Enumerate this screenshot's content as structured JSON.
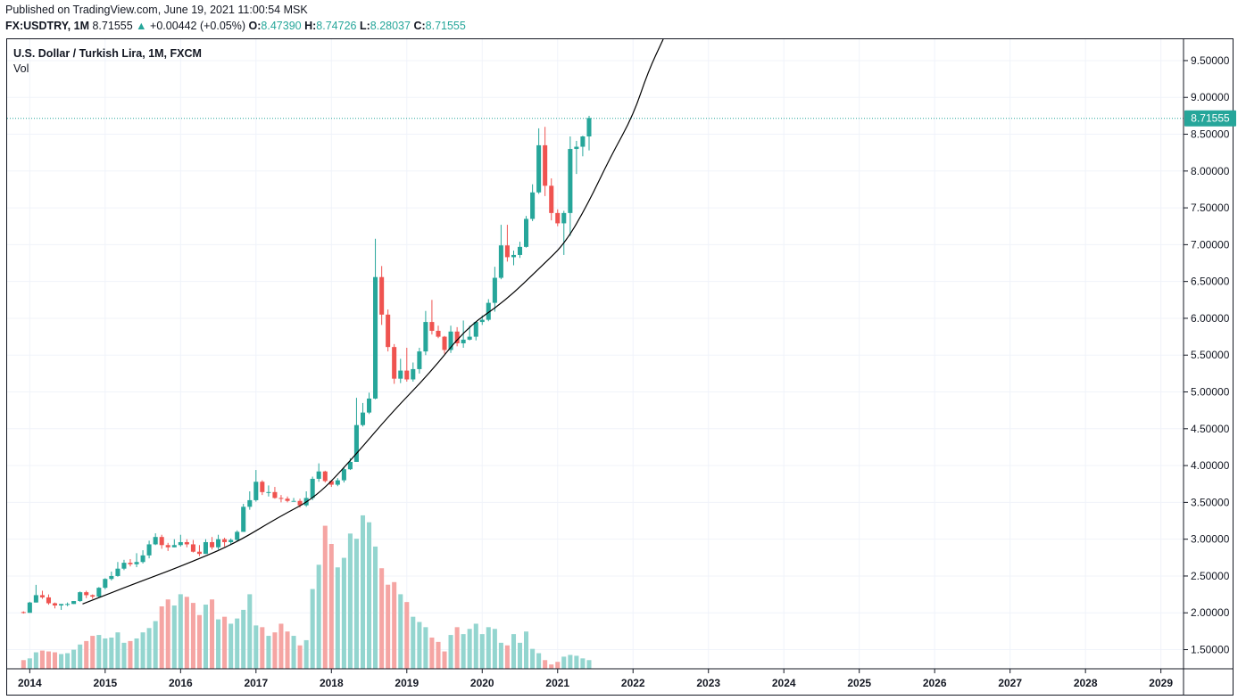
{
  "header": {
    "published": "Published on TradingView.com, June 19, 2021 11:00:54 MSK",
    "symbol": "FX:USDTRY, 1M",
    "last": "8.71555",
    "change_arrow": "▲",
    "change": "+0.00442 (+0.05%)",
    "o_label": "O:",
    "o_value": "8.47390",
    "h_label": "H:",
    "h_value": "8.74726",
    "l_label": "L:",
    "l_value": "8.28037",
    "c_label": "C:",
    "c_value": "8.71555"
  },
  "legend": {
    "title": "U.S. Dollar / Turkish Lira, 1M, FXCM",
    "volume": "Vol"
  },
  "colors": {
    "up": "#26a69a",
    "down": "#ef5350",
    "up_volume": "#93d5cf",
    "down_volume": "#f5a5a3",
    "grid": "#f0f3fa",
    "curve": "#000000",
    "price_label_bg": "#26a69a"
  },
  "chart_data": {
    "type": "candlestick",
    "price_axis": {
      "ticks": [
        "9.50000",
        "9.00000",
        "8.50000",
        "8.00000",
        "7.50000",
        "7.00000",
        "6.50000",
        "6.00000",
        "5.50000",
        "5.00000",
        "4.50000",
        "4.00000",
        "3.50000",
        "3.00000",
        "2.50000",
        "2.00000",
        "1.50000"
      ],
      "range": [
        1.24,
        9.79
      ]
    },
    "time_axis": {
      "ticks": [
        "2014",
        "2015",
        "2016",
        "2017",
        "2018",
        "2019",
        "2020",
        "2021",
        "2022",
        "2023",
        "2024",
        "2025",
        "2026",
        "2027",
        "2028",
        "2029"
      ],
      "range_years": [
        2013.7,
        2029.3
      ]
    },
    "last_price": "8.71555",
    "series": [
      {
        "name": "USDTRY",
        "candles": [
          [
            2013.917,
            2.01,
            2.02,
            1.99,
            2.0
          ],
          [
            2014.0,
            2.0,
            2.15,
            2.0,
            2.14
          ],
          [
            2014.083,
            2.14,
            2.38,
            2.14,
            2.24
          ],
          [
            2014.167,
            2.24,
            2.3,
            2.19,
            2.21
          ],
          [
            2014.25,
            2.21,
            2.25,
            2.11,
            2.13
          ],
          [
            2014.333,
            2.13,
            2.14,
            2.06,
            2.1
          ],
          [
            2014.417,
            2.1,
            2.12,
            2.04,
            2.12
          ],
          [
            2014.5,
            2.12,
            2.14,
            2.09,
            2.12
          ],
          [
            2014.583,
            2.12,
            2.16,
            2.12,
            2.16
          ],
          [
            2014.667,
            2.16,
            2.29,
            2.15,
            2.28
          ],
          [
            2014.75,
            2.28,
            2.3,
            2.2,
            2.24
          ],
          [
            2014.833,
            2.24,
            2.25,
            2.19,
            2.22
          ],
          [
            2014.917,
            2.22,
            2.35,
            2.21,
            2.34
          ],
          [
            2015.0,
            2.34,
            2.47,
            2.32,
            2.46
          ],
          [
            2015.083,
            2.46,
            2.56,
            2.44,
            2.5
          ],
          [
            2015.167,
            2.5,
            2.69,
            2.49,
            2.6
          ],
          [
            2015.25,
            2.6,
            2.72,
            2.58,
            2.68
          ],
          [
            2015.333,
            2.68,
            2.73,
            2.63,
            2.66
          ],
          [
            2015.417,
            2.66,
            2.81,
            2.62,
            2.69
          ],
          [
            2015.5,
            2.69,
            2.85,
            2.67,
            2.78
          ],
          [
            2015.583,
            2.78,
            2.98,
            2.74,
            2.93
          ],
          [
            2015.667,
            2.93,
            3.08,
            2.92,
            3.03
          ],
          [
            2015.75,
            3.03,
            3.06,
            2.87,
            2.92
          ],
          [
            2015.833,
            2.92,
            2.95,
            2.84,
            2.89
          ],
          [
            2015.917,
            2.89,
            3.0,
            2.89,
            2.92
          ],
          [
            2016.0,
            2.92,
            3.06,
            2.9,
            2.96
          ],
          [
            2016.083,
            2.96,
            3.0,
            2.89,
            2.93
          ],
          [
            2016.167,
            2.93,
            2.99,
            2.82,
            2.83
          ],
          [
            2016.25,
            2.83,
            2.92,
            2.77,
            2.8
          ],
          [
            2016.333,
            2.8,
            3.0,
            2.8,
            2.96
          ],
          [
            2016.417,
            2.96,
            3.03,
            2.86,
            2.89
          ],
          [
            2016.5,
            2.89,
            3.06,
            2.86,
            3.0
          ],
          [
            2016.583,
            3.0,
            3.02,
            2.9,
            2.96
          ],
          [
            2016.667,
            2.96,
            3.01,
            2.92,
            2.99
          ],
          [
            2016.75,
            2.99,
            3.12,
            2.97,
            3.1
          ],
          [
            2016.833,
            3.1,
            3.48,
            3.1,
            3.44
          ],
          [
            2016.917,
            3.44,
            3.65,
            3.4,
            3.53
          ],
          [
            2017.0,
            3.53,
            3.94,
            3.51,
            3.78
          ],
          [
            2017.083,
            3.78,
            3.8,
            3.6,
            3.64
          ],
          [
            2017.167,
            3.64,
            3.73,
            3.58,
            3.64
          ],
          [
            2017.25,
            3.64,
            3.71,
            3.55,
            3.56
          ],
          [
            2017.333,
            3.56,
            3.6,
            3.5,
            3.55
          ],
          [
            2017.417,
            3.55,
            3.58,
            3.5,
            3.52
          ],
          [
            2017.5,
            3.52,
            3.56,
            3.52,
            3.52
          ],
          [
            2017.583,
            3.52,
            3.55,
            3.43,
            3.46
          ],
          [
            2017.667,
            3.46,
            3.65,
            3.44,
            3.56
          ],
          [
            2017.75,
            3.56,
            3.85,
            3.53,
            3.82
          ],
          [
            2017.833,
            3.82,
            4.03,
            3.78,
            3.92
          ],
          [
            2017.917,
            3.92,
            3.93,
            3.77,
            3.79
          ],
          [
            2018.0,
            3.79,
            3.8,
            3.71,
            3.74
          ],
          [
            2018.083,
            3.74,
            3.83,
            3.72,
            3.8
          ],
          [
            2018.167,
            3.8,
            3.98,
            3.77,
            3.95
          ],
          [
            2018.25,
            3.95,
            4.1,
            3.94,
            4.05
          ],
          [
            2018.333,
            4.05,
            4.92,
            4.05,
            4.55
          ],
          [
            2018.417,
            4.55,
            4.85,
            4.53,
            4.72
          ],
          [
            2018.5,
            4.72,
            4.99,
            4.7,
            4.91
          ],
          [
            2018.583,
            4.91,
            7.08,
            4.9,
            6.56
          ],
          [
            2018.667,
            6.56,
            6.71,
            5.91,
            6.05
          ],
          [
            2018.75,
            6.05,
            6.12,
            5.55,
            5.61
          ],
          [
            2018.833,
            5.61,
            5.65,
            5.11,
            5.18
          ],
          [
            2018.917,
            5.18,
            5.45,
            5.12,
            5.29
          ],
          [
            2019.0,
            5.29,
            5.6,
            5.14,
            5.17
          ],
          [
            2019.083,
            5.17,
            5.4,
            5.14,
            5.31
          ],
          [
            2019.167,
            5.31,
            5.6,
            5.25,
            5.55
          ],
          [
            2019.25,
            5.55,
            6.1,
            5.5,
            5.95
          ],
          [
            2019.333,
            5.95,
            6.25,
            5.78,
            5.83
          ],
          [
            2019.417,
            5.83,
            5.9,
            5.73,
            5.75
          ],
          [
            2019.5,
            5.75,
            5.76,
            5.52,
            5.57
          ],
          [
            2019.583,
            5.57,
            5.9,
            5.53,
            5.82
          ],
          [
            2019.667,
            5.82,
            5.88,
            5.62,
            5.66
          ],
          [
            2019.75,
            5.66,
            5.97,
            5.6,
            5.71
          ],
          [
            2019.833,
            5.71,
            5.9,
            5.7,
            5.75
          ],
          [
            2019.917,
            5.75,
            5.96,
            5.7,
            5.95
          ],
          [
            2020.0,
            5.95,
            6.04,
            5.91,
            5.98
          ],
          [
            2020.083,
            5.98,
            6.26,
            5.96,
            6.21
          ],
          [
            2020.167,
            6.21,
            6.7,
            6.09,
            6.55
          ],
          [
            2020.25,
            6.55,
            7.27,
            6.53,
            6.99
          ],
          [
            2020.333,
            6.99,
            7.27,
            6.77,
            6.83
          ],
          [
            2020.417,
            6.83,
            6.92,
            6.72,
            6.86
          ],
          [
            2020.5,
            6.86,
            7.04,
            6.82,
            6.97
          ],
          [
            2020.583,
            6.97,
            7.39,
            6.96,
            7.35
          ],
          [
            2020.667,
            7.35,
            7.82,
            7.32,
            7.71
          ],
          [
            2020.75,
            7.71,
            8.58,
            7.69,
            8.35
          ],
          [
            2020.833,
            8.35,
            8.6,
            7.66,
            7.8
          ],
          [
            2020.917,
            7.8,
            7.9,
            7.33,
            7.43
          ],
          [
            2021.0,
            7.43,
            7.48,
            7.25,
            7.29
          ],
          [
            2021.083,
            7.29,
            7.46,
            6.86,
            7.43
          ],
          [
            2021.167,
            7.43,
            8.47,
            7.12,
            8.3
          ],
          [
            2021.25,
            8.3,
            8.41,
            7.96,
            8.33
          ],
          [
            2021.333,
            8.33,
            8.48,
            8.2,
            8.47
          ],
          [
            2021.417,
            8.47,
            8.75,
            8.28,
            8.72
          ]
        ]
      },
      {
        "name": "Vol",
        "values": [
          0.1,
          0.12,
          0.19,
          0.21,
          0.2,
          0.19,
          0.17,
          0.18,
          0.22,
          0.28,
          0.32,
          0.38,
          0.39,
          0.35,
          0.36,
          0.42,
          0.3,
          0.32,
          0.35,
          0.42,
          0.47,
          0.55,
          0.72,
          0.8,
          0.73,
          0.86,
          0.83,
          0.76,
          0.62,
          0.74,
          0.8,
          0.57,
          0.6,
          0.52,
          0.58,
          0.68,
          0.86,
          0.5,
          0.48,
          0.38,
          0.42,
          0.52,
          0.43,
          0.38,
          0.27,
          0.33,
          0.92,
          1.2,
          1.65,
          1.44,
          1.17,
          1.28,
          1.56,
          1.5,
          1.77,
          1.69,
          1.41,
          1.16,
          0.97,
          1.0,
          0.86,
          0.77,
          0.6,
          0.54,
          0.48,
          0.36,
          0.31,
          0.2,
          0.39,
          0.48,
          0.4,
          0.46,
          0.52,
          0.4,
          0.48,
          0.46,
          0.3,
          0.27,
          0.4,
          0.3,
          0.43,
          0.23,
          0.18,
          0.1,
          0.05,
          0.08,
          0.14,
          0.16,
          0.15,
          0.12,
          0.1
        ]
      },
      {
        "name": "curve",
        "points": [
          [
            2014.7,
            2.12
          ],
          [
            2015.3,
            2.36
          ],
          [
            2016.0,
            2.63
          ],
          [
            2016.7,
            2.93
          ],
          [
            2017.3,
            3.3
          ],
          [
            2017.8,
            3.57
          ],
          [
            2018.3,
            4.12
          ],
          [
            2018.8,
            4.72
          ],
          [
            2019.3,
            5.25
          ],
          [
            2019.8,
            5.88
          ],
          [
            2020.3,
            6.23
          ],
          [
            2020.8,
            6.72
          ],
          [
            2021.1,
            7.02
          ],
          [
            2021.4,
            7.55
          ],
          [
            2021.7,
            8.19
          ],
          [
            2022.0,
            8.75
          ],
          [
            2022.2,
            9.35
          ],
          [
            2022.4,
            9.79
          ]
        ]
      }
    ]
  }
}
